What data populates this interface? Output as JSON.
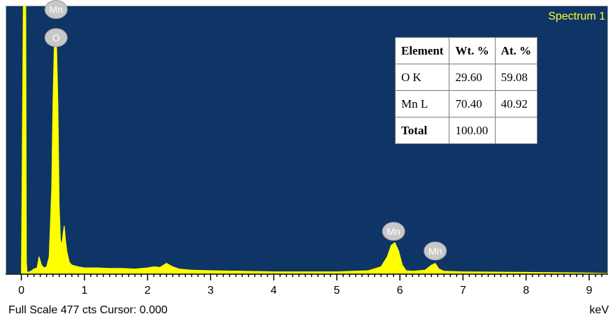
{
  "chart_data": {
    "type": "line",
    "title": "Spectrum 1",
    "xlabel": "keV",
    "xlim": [
      -0.25,
      9.3
    ],
    "ylim": [
      0,
      477
    ],
    "x_ticks": [
      0,
      1,
      2,
      3,
      4,
      5,
      6,
      7,
      8,
      9
    ],
    "series": [
      {
        "x": [
          0.0,
          0.03,
          0.04,
          0.05,
          0.06,
          0.07,
          0.08,
          0.09,
          0.1,
          0.15,
          0.2,
          0.25,
          0.28,
          0.32,
          0.36,
          0.4,
          0.44,
          0.48,
          0.5,
          0.52,
          0.54,
          0.56,
          0.58,
          0.6,
          0.62,
          0.64,
          0.66,
          0.68,
          0.7,
          0.72,
          0.76,
          0.8,
          0.9,
          1.0,
          1.2,
          1.4,
          1.6,
          1.8,
          2.0,
          2.1,
          2.2,
          2.3,
          2.4,
          2.5,
          2.7,
          3.0,
          3.5,
          4.0,
          4.5,
          5.0,
          5.5,
          5.7,
          5.8,
          5.86,
          5.92,
          5.98,
          6.04,
          6.1,
          6.2,
          6.4,
          6.5,
          6.56,
          6.62,
          6.7,
          7.0,
          8.0,
          9.0,
          9.3
        ],
        "y": [
          0,
          477,
          477,
          477,
          477,
          477,
          20,
          3,
          2,
          4,
          8,
          10,
          30,
          15,
          10,
          12,
          30,
          150,
          300,
          400,
          421,
          400,
          300,
          120,
          60,
          50,
          70,
          85,
          60,
          40,
          20,
          15,
          12,
          10,
          10,
          9,
          9,
          8,
          10,
          12,
          11,
          18,
          12,
          8,
          6,
          5,
          4,
          3,
          3,
          3,
          5,
          12,
          30,
          50,
          55,
          40,
          15,
          5,
          4,
          6,
          15,
          18,
          8,
          4,
          3,
          2,
          1,
          0
        ]
      }
    ],
    "peak_labels": [
      {
        "text": "Mn",
        "x": 0.55,
        "y": 470
      },
      {
        "text": "O",
        "x": 0.55,
        "y": 420
      },
      {
        "text": "Mn",
        "x": 5.9,
        "y": 75
      },
      {
        "text": "Mn",
        "x": 6.56,
        "y": 40
      }
    ]
  },
  "results_table": {
    "headers": [
      "Element",
      "Wt. %",
      "At. %"
    ],
    "rows": [
      [
        "O K",
        "29.60",
        "59.08"
      ],
      [
        "Mn L",
        "70.40",
        "40.92"
      ],
      [
        "Total",
        "100.00",
        ""
      ]
    ]
  },
  "footer": {
    "status": "Full Scale 477 cts Cursor: 0.000",
    "unit": "keV"
  },
  "colors": {
    "plot_bg": "#0e3566",
    "spectrum": "#ffff00",
    "peak_label_bg": "#c8c8c8",
    "title": "#ffff33"
  }
}
